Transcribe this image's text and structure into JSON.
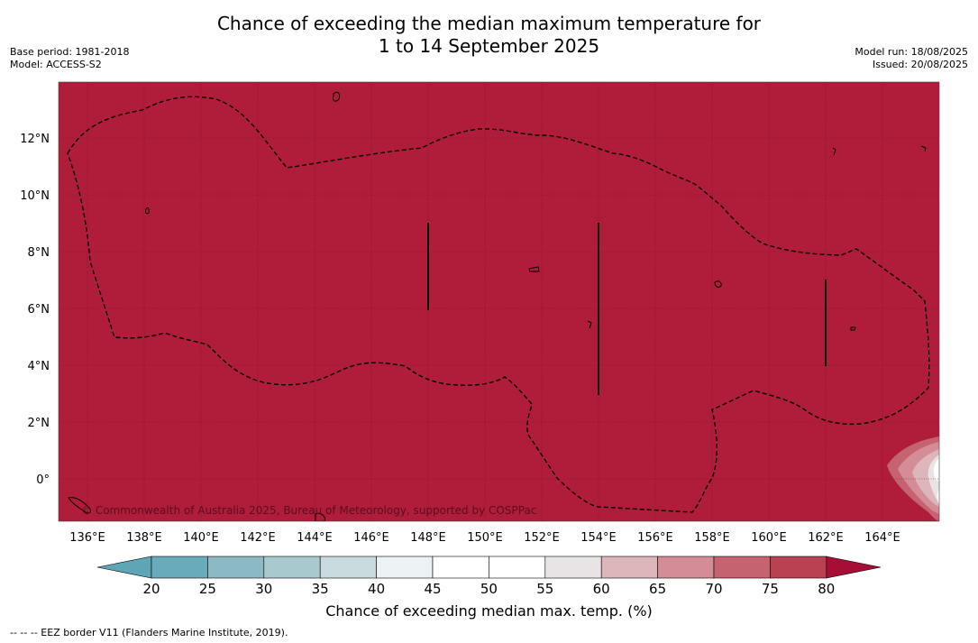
{
  "title": {
    "line1": "Chance of exceeding the median maximum temperature for",
    "line2": "1 to 14 September 2025"
  },
  "meta_left": {
    "base_period": "Base period: 1981-2018",
    "model": "Model: ACCESS-S2"
  },
  "meta_right": {
    "model_run": "Model run: 18/08/2025",
    "issued": "Issued: 20/08/2025"
  },
  "map": {
    "fill_color": "#b01d3a",
    "lat_labels": [
      "12°N",
      "10°N",
      "8°N",
      "6°N",
      "4°N",
      "2°N",
      "0°"
    ],
    "lon_labels": [
      "136°E",
      "138°E",
      "140°E",
      "142°E",
      "144°E",
      "146°E",
      "148°E",
      "150°E",
      "152°E",
      "154°E",
      "156°E",
      "158°E",
      "160°E",
      "162°E",
      "164°E"
    ],
    "copyright": "© Commonwealth of Australia 2025, Bureau of Meteorology, supported by COSPPac"
  },
  "colorbar": {
    "ticks": [
      "20",
      "25",
      "30",
      "35",
      "40",
      "45",
      "50",
      "55",
      "60",
      "65",
      "70",
      "75",
      "80"
    ],
    "colors": [
      "#5ea6b5",
      "#6aabbb",
      "#8bb9c4",
      "#a8c9ce",
      "#c8dadd",
      "#ecf1f3",
      "#ffffff",
      "#ffffff",
      "#e8e4e5",
      "#ddb6bc",
      "#d48d96",
      "#c56470",
      "#b94252",
      "#a60e35"
    ],
    "label": "Chance of exceeding median max. temp. (%)"
  },
  "footer": "--  --  -- EEZ border V11 (Flanders Marine Institute, 2019)."
}
